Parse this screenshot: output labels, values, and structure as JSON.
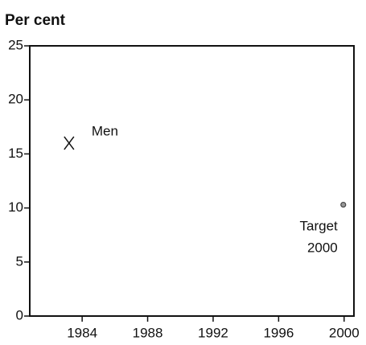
{
  "chart_data": {
    "type": "scatter",
    "y_label": "Per cent",
    "xlim": [
      1980.8,
      2000.6
    ],
    "xticks": [
      1984,
      1988,
      1992,
      1996,
      2000
    ],
    "ylim": [
      0,
      25
    ],
    "yticks": [
      0,
      5,
      10,
      15,
      20,
      25
    ],
    "series": [
      {
        "name": "Men",
        "marker": "x",
        "color": "#111111",
        "x": [
          1983.2
        ],
        "values": [
          16
        ]
      },
      {
        "name": "Target 2000",
        "marker": "dot",
        "color": "#444444",
        "x": [
          1999.95
        ],
        "values": [
          10.3
        ]
      }
    ]
  }
}
